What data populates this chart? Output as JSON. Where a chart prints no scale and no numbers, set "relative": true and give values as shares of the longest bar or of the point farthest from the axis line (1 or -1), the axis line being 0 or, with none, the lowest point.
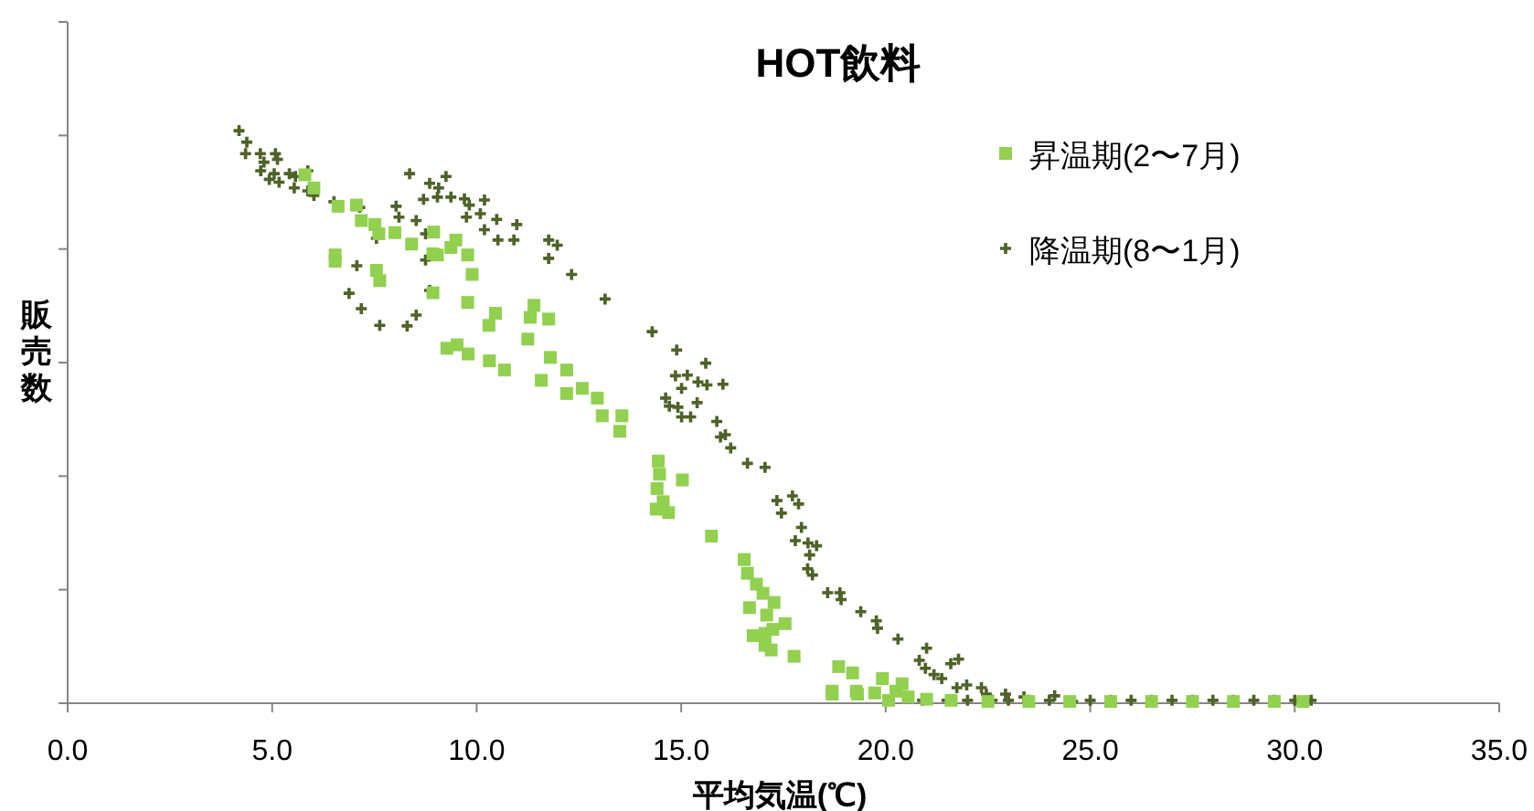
{
  "chart_data": {
    "type": "scatter",
    "title": "HOT飲料",
    "xlabel": "平均気温(℃)",
    "ylabel": "販売数",
    "relative": true,
    "grid": false,
    "legend": "top right",
    "xlim": [
      0,
      35
    ],
    "xticks": [
      {
        "value": 0,
        "label": "0.0"
      },
      {
        "value": 5,
        "label": "5.0"
      },
      {
        "value": 10,
        "label": "10.0"
      },
      {
        "value": 15,
        "label": "15.0"
      },
      {
        "value": 20,
        "label": "20.0"
      },
      {
        "value": 25,
        "label": "25.0"
      },
      {
        "value": 30,
        "label": "30.0"
      },
      {
        "value": 35,
        "label": "35.0"
      }
    ],
    "series": [
      {
        "name": "昇温期(2〜7月)",
        "color": "#92d050",
        "marker": "square",
        "x": [
          5.8,
          6.02,
          6.61,
          7.06,
          7.18,
          7.51,
          7.61,
          8.0,
          8.41,
          6.54,
          6.54,
          7.55,
          7.63,
          8.95,
          9.49,
          9.37,
          8.93,
          9.04,
          9.78,
          9.89,
          8.93,
          9.78,
          10.46,
          11.4,
          11.31,
          11.76,
          10.3,
          11.25,
          9.27,
          9.52,
          9.79,
          10.31,
          10.68,
          11.8,
          12.2,
          11.58,
          12.2,
          12.58,
          12.95,
          13.07,
          13.55,
          13.5,
          14.44,
          14.47,
          15.03,
          14.41,
          14.56,
          14.39,
          14.69,
          15.74,
          16.54,
          16.62,
          16.84,
          17.0,
          17.27,
          16.67,
          17.09,
          17.54,
          16.76,
          17.05,
          17.24,
          17.05,
          17.2,
          17.76,
          18.85,
          19.19,
          18.69,
          19.28,
          18.69,
          19.31,
          19.73,
          19.92,
          20.4,
          20.25,
          20.07,
          20.55,
          21.0,
          21.6,
          22.5,
          23.5,
          24.5,
          25.5,
          26.5,
          27.5,
          28.5,
          29.5,
          30.2
        ],
        "values": [
          0.923,
          0.9,
          0.868,
          0.87,
          0.843,
          0.836,
          0.82,
          0.822,
          0.802,
          0.783,
          0.772,
          0.756,
          0.738,
          0.823,
          0.809,
          0.796,
          0.785,
          0.783,
          0.783,
          0.749,
          0.717,
          0.7,
          0.681,
          0.695,
          0.674,
          0.671,
          0.66,
          0.636,
          0.62,
          0.626,
          0.61,
          0.598,
          0.582,
          0.604,
          0.582,
          0.564,
          0.541,
          0.55,
          0.533,
          0.502,
          0.502,
          0.475,
          0.423,
          0.4,
          0.39,
          0.375,
          0.352,
          0.339,
          0.333,
          0.292,
          0.251,
          0.227,
          0.208,
          0.192,
          0.176,
          0.167,
          0.154,
          0.139,
          0.118,
          0.122,
          0.129,
          0.101,
          0.093,
          0.082,
          0.064,
          0.053,
          0.021,
          0.021,
          0.016,
          0.016,
          0.018,
          0.043,
          0.034,
          0.021,
          0.005,
          0.011,
          0.007,
          0.005,
          0.003,
          0.003,
          0.003,
          0.003,
          0.003,
          0.003,
          0.003,
          0.003,
          0.003
        ]
      },
      {
        "name": "降温期(8〜1月)",
        "color": "#4f6228",
        "marker": "cross",
        "x": [
          4.19,
          4.38,
          4.35,
          4.71,
          5.08,
          4.8,
          4.72,
          5.13,
          5.05,
          4.93,
          5.17,
          5.42,
          5.57,
          5.87,
          5.54,
          5.87,
          6.02,
          6.51,
          7.14,
          8.03,
          8.1,
          8.52,
          7.55,
          8.36,
          8.85,
          9.25,
          9.07,
          8.7,
          9.04,
          9.37,
          9.7,
          9.82,
          10.19,
          10.09,
          9.75,
          10.49,
          10.19,
          10.98,
          10.52,
          10.91,
          11.76,
          11.97,
          11.76,
          12.32,
          13.14,
          8.75,
          8.75,
          7.07,
          8.85,
          6.88,
          7.18,
          8.52,
          7.63,
          8.3,
          14.29,
          14.89,
          15.6,
          14.86,
          15.15,
          15.41,
          15.63,
          16.02,
          15.01,
          14.62,
          14.71,
          14.92,
          15.39,
          15.01,
          15.23,
          15.87,
          15.96,
          16.08,
          16.21,
          16.62,
          17.05,
          17.34,
          17.72,
          17.87,
          17.45,
          17.94,
          17.79,
          18.1,
          18.31,
          18.14,
          18.09,
          18.21,
          18.58,
          18.88,
          18.91,
          19.39,
          19.77,
          19.8,
          20.3,
          21.0,
          20.82,
          20.97,
          21.18,
          21.37,
          21.59,
          21.78,
          21.74,
          21.98,
          22.34,
          22.46,
          22.93,
          23.38,
          24.13,
          24.57,
          20.9,
          21.5,
          22.0,
          22.6,
          23.0,
          23.5,
          24.0,
          25.0,
          25.5,
          26.0,
          26.5,
          27.0,
          27.5,
          28.0,
          28.5,
          29.0,
          29.5,
          30.0,
          30.4
        ],
        "values": [
          1.0,
          0.98,
          0.96,
          0.96,
          0.96,
          0.945,
          0.93,
          0.95,
          0.925,
          0.915,
          0.91,
          0.925,
          0.92,
          0.93,
          0.9,
          0.895,
          0.887,
          0.876,
          0.866,
          0.868,
          0.849,
          0.843,
          0.812,
          0.925,
          0.908,
          0.92,
          0.9,
          0.88,
          0.884,
          0.884,
          0.881,
          0.87,
          0.879,
          0.855,
          0.849,
          0.845,
          0.827,
          0.836,
          0.809,
          0.809,
          0.809,
          0.8,
          0.777,
          0.749,
          0.706,
          0.82,
          0.774,
          0.764,
          0.721,
          0.716,
          0.689,
          0.678,
          0.66,
          0.659,
          0.649,
          0.617,
          0.594,
          0.572,
          0.573,
          0.561,
          0.556,
          0.557,
          0.55,
          0.533,
          0.519,
          0.517,
          0.525,
          0.5,
          0.5,
          0.492,
          0.465,
          0.469,
          0.446,
          0.419,
          0.412,
          0.354,
          0.362,
          0.348,
          0.332,
          0.307,
          0.284,
          0.28,
          0.275,
          0.259,
          0.235,
          0.224,
          0.193,
          0.193,
          0.181,
          0.16,
          0.144,
          0.131,
          0.112,
          0.096,
          0.075,
          0.061,
          0.05,
          0.043,
          0.069,
          0.077,
          0.027,
          0.032,
          0.027,
          0.016,
          0.016,
          0.011,
          0.013,
          0.003,
          0.005,
          0.005,
          0.005,
          0.005,
          0.005,
          0.005,
          0.005,
          0.005,
          0.005,
          0.005,
          0.005,
          0.005,
          0.005,
          0.005,
          0.005,
          0.005,
          0.005,
          0.005,
          0.005
        ]
      }
    ]
  }
}
